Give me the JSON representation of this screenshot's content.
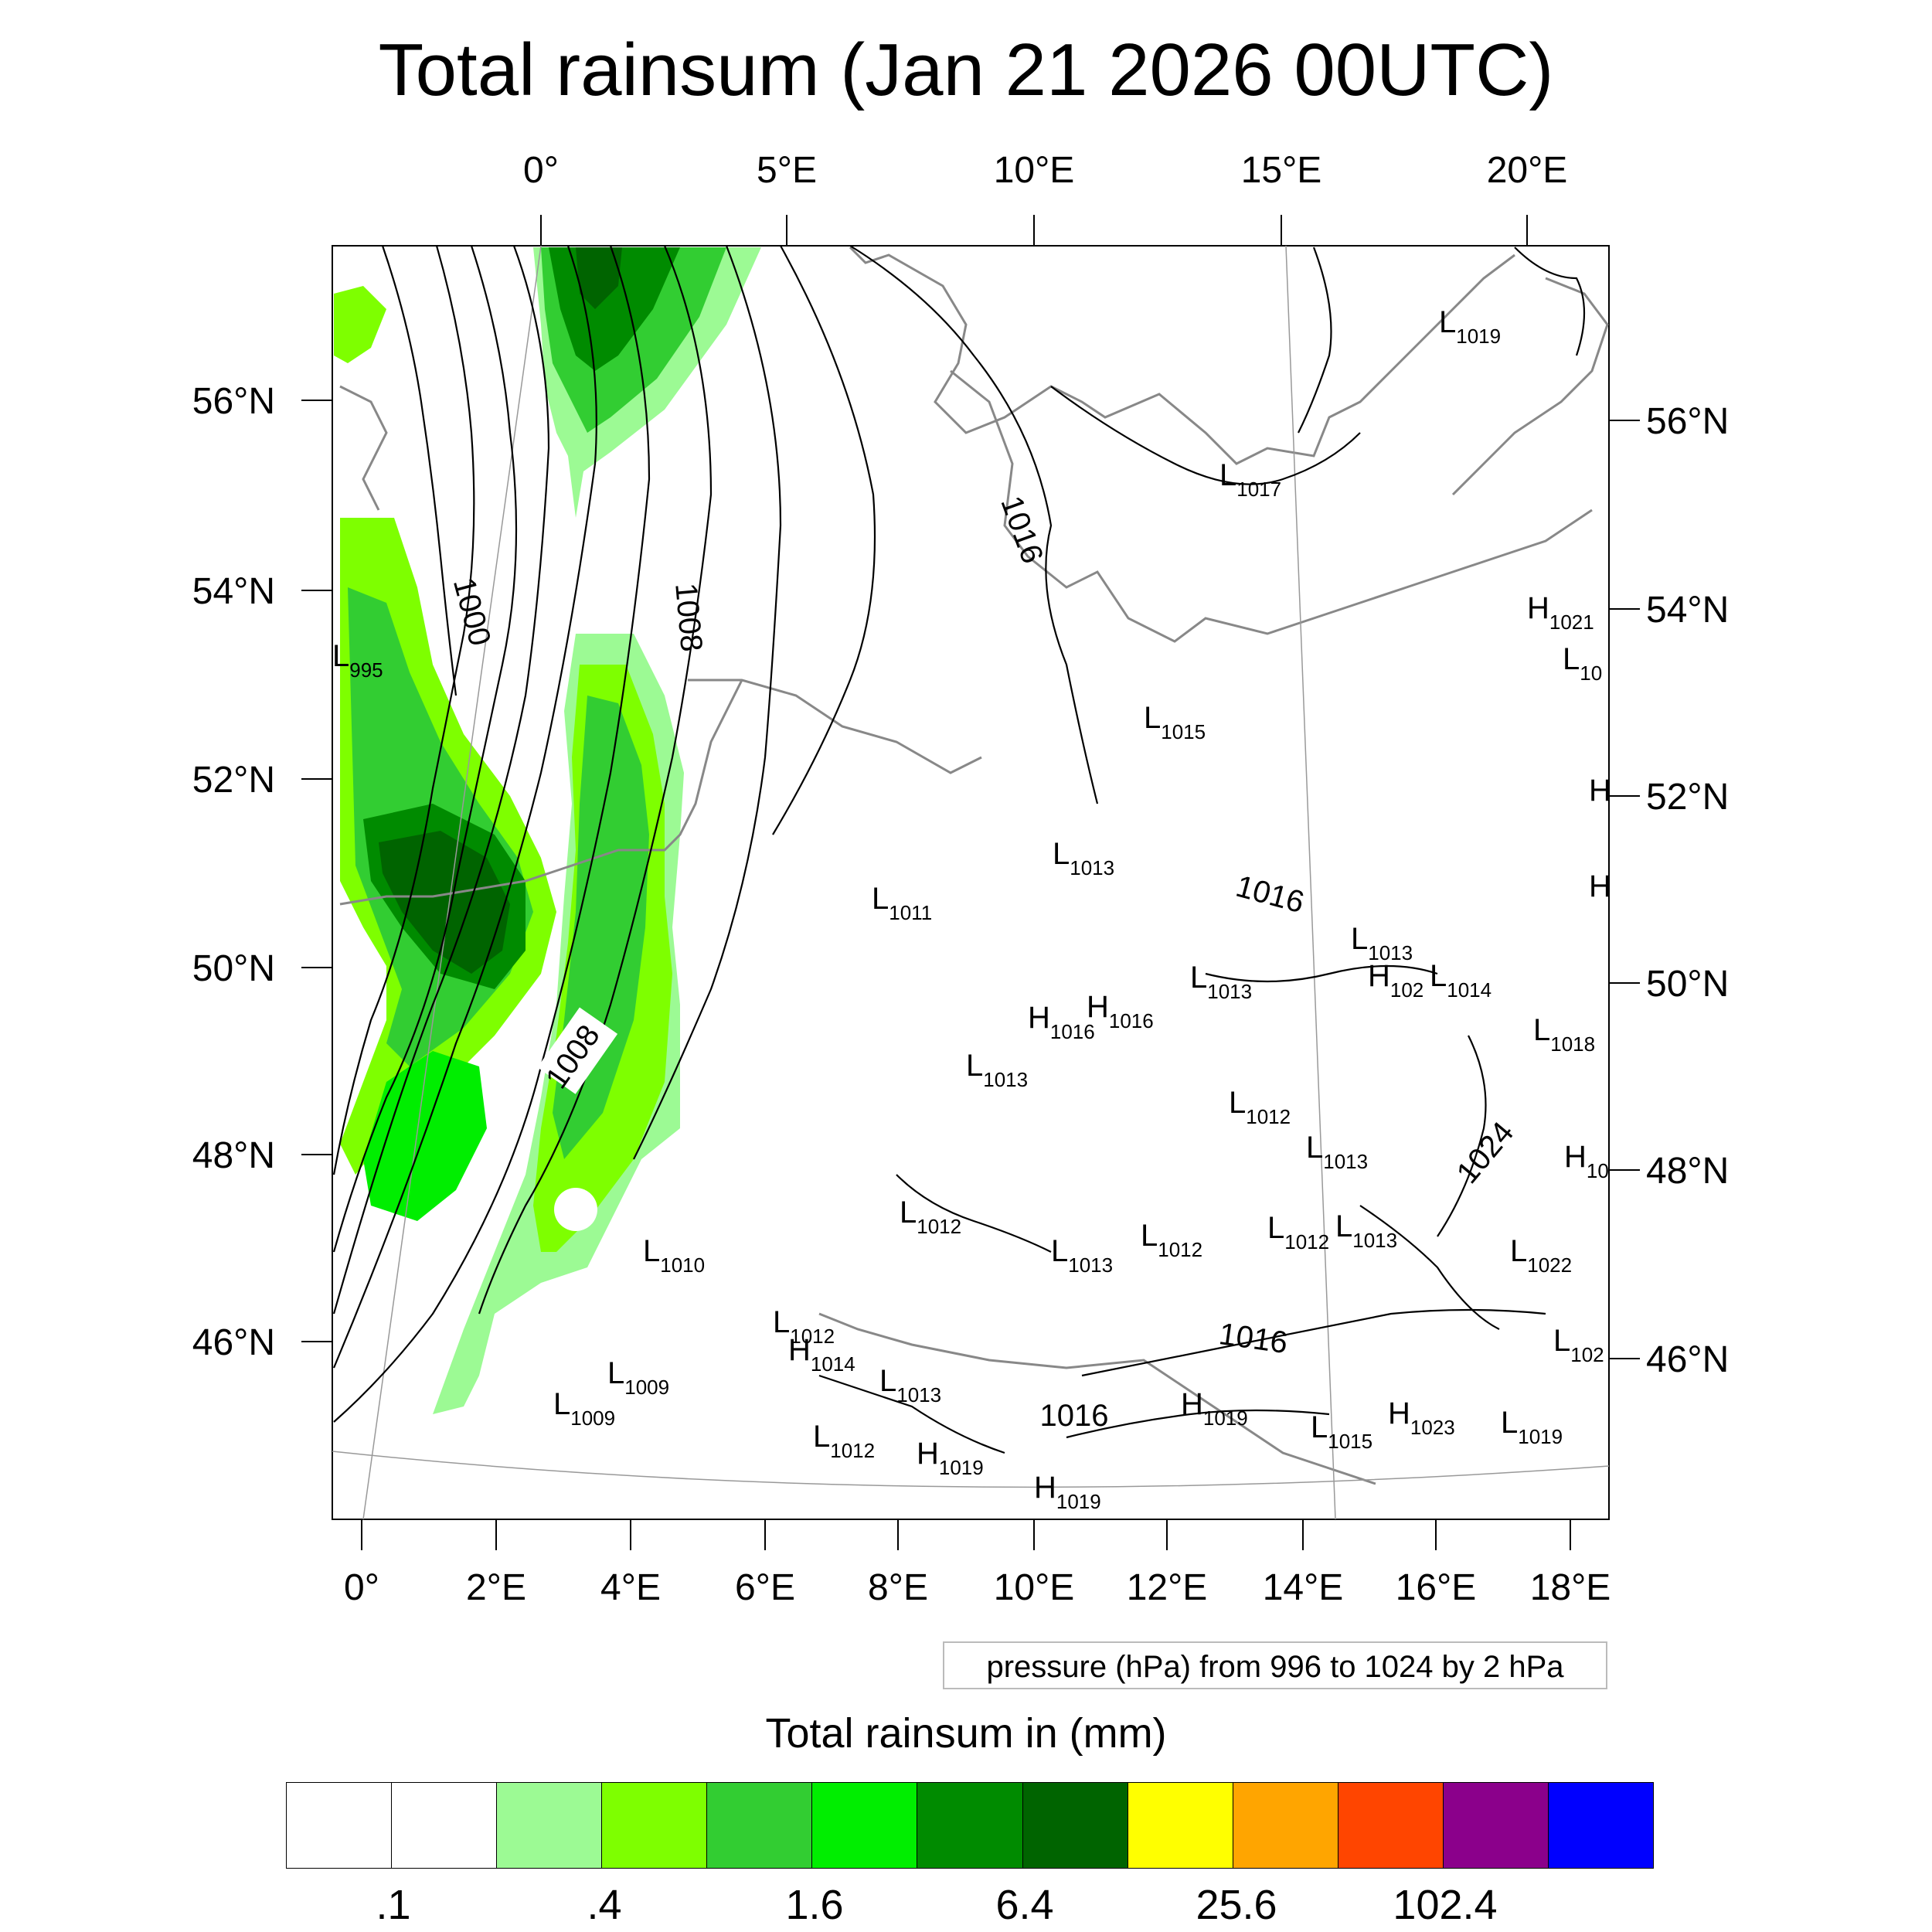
{
  "title": "Total rainsum (Jan 21 2026 00UTC)",
  "top_lon_labels": [
    "0°",
    "5°E",
    "10°E",
    "15°E",
    "20°E"
  ],
  "bottom_lon_labels": [
    "0°",
    "2°E",
    "4°E",
    "6°E",
    "8°E",
    "10°E",
    "12°E",
    "14°E",
    "16°E",
    "18°E"
  ],
  "left_lat_labels": [
    "56°N",
    "54°N",
    "52°N",
    "50°N",
    "48°N",
    "46°N"
  ],
  "right_lat_labels": [
    "56°N",
    "54°N",
    "52°N",
    "50°N",
    "48°N",
    "46°N"
  ],
  "contour_labels": [
    "1000",
    "1008",
    "1008",
    "1016",
    "1016",
    "1024",
    "1016",
    "1016"
  ],
  "pressure_centers": [
    {
      "type": "L",
      "value": "1019"
    },
    {
      "type": "L",
      "value": "1017"
    },
    {
      "type": "H",
      "value": "1021"
    },
    {
      "type": "L",
      "value": "10"
    },
    {
      "type": "L",
      "value": "995"
    },
    {
      "type": "L",
      "value": "1015"
    },
    {
      "type": "H",
      "value": ""
    },
    {
      "type": "H",
      "value": ""
    },
    {
      "type": "L",
      "value": "1013"
    },
    {
      "type": "L",
      "value": "1011"
    },
    {
      "type": "L",
      "value": "1013"
    },
    {
      "type": "H",
      "value": "102"
    },
    {
      "type": "L",
      "value": "1014"
    },
    {
      "type": "L",
      "value": "1013"
    },
    {
      "type": "H",
      "value": "1016"
    },
    {
      "type": "H",
      "value": "1016"
    },
    {
      "type": "L",
      "value": "1018"
    },
    {
      "type": "L",
      "value": "1013"
    },
    {
      "type": "L",
      "value": "1012"
    },
    {
      "type": "L",
      "value": "1013"
    },
    {
      "type": "H",
      "value": "10"
    },
    {
      "type": "L",
      "value": "1012"
    },
    {
      "type": "L",
      "value": "1013"
    },
    {
      "type": "L",
      "value": "1013"
    },
    {
      "type": "L",
      "value": "1012"
    },
    {
      "type": "L",
      "value": "1012"
    },
    {
      "type": "L",
      "value": "1010"
    },
    {
      "type": "L",
      "value": "1022"
    },
    {
      "type": "L",
      "value": "1012"
    },
    {
      "type": "H",
      "value": "1014"
    },
    {
      "type": "L",
      "value": "102"
    },
    {
      "type": "L",
      "value": "1009"
    },
    {
      "type": "L",
      "value": "1009"
    },
    {
      "type": "L",
      "value": "1013"
    },
    {
      "type": "H",
      "value": "1019"
    },
    {
      "type": "L",
      "value": "1015"
    },
    {
      "type": "H",
      "value": "1023"
    },
    {
      "type": "L",
      "value": "1019"
    },
    {
      "type": "L",
      "value": "1012"
    },
    {
      "type": "H",
      "value": "1019"
    },
    {
      "type": "H",
      "value": "1019"
    }
  ],
  "legend_note": "pressure (hPa) from 996 to 1024 by 2 hPa",
  "colorbar": {
    "title": "Total rainsum in (mm)",
    "colors": [
      "#ffffff",
      "#ffffff",
      "#9cfa94",
      "#7eff00",
      "#32cd32",
      "#00ee00",
      "#008b00",
      "#006400",
      "#ffff00",
      "#ffa500",
      "#ff4500",
      "#8b008b",
      "#0000ff"
    ],
    "labels": [
      ".1",
      ".4",
      "1.6",
      "6.4",
      "25.6",
      "102.4"
    ]
  }
}
